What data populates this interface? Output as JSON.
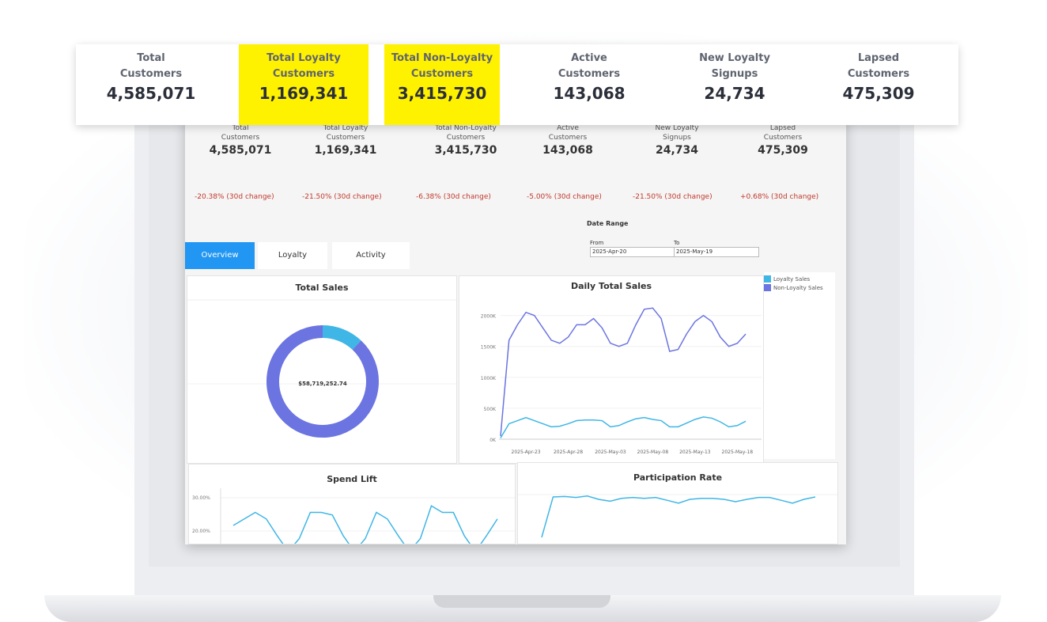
{
  "banner": {
    "kpis": [
      {
        "label": "Total Customers",
        "value": "4,585,071",
        "highlight": false
      },
      {
        "label": "Total Loyalty Customers",
        "value": "1,169,341",
        "highlight": true
      },
      {
        "label": "Total Non-Loyalty Customers",
        "value": "3,415,730",
        "highlight": true
      },
      {
        "label": "Active Customers",
        "value": "143,068",
        "highlight": false
      },
      {
        "label": "New Loyalty Signups",
        "value": "24,734",
        "highlight": false
      },
      {
        "label": "Lapsed Customers",
        "value": "475,309",
        "highlight": false
      }
    ],
    "highlight_color": "#fff200"
  },
  "dashboard": {
    "kpis": [
      {
        "label": "Total Customers",
        "value": "4,585,071",
        "change": "-20.38% (30d change)"
      },
      {
        "label": "Total Loyalty Customers",
        "value": "1,169,341",
        "change": "-21.50% (30d change)"
      },
      {
        "label": "Total Non-Loyalty Customers",
        "value": "3,415,730",
        "change": "-6.38% (30d change)"
      },
      {
        "label": "Active Customers",
        "value": "143,068",
        "change": "-5.00% (30d change)"
      },
      {
        "label": "New Loyalty Signups",
        "value": "24,734",
        "change": "-21.50% (30d change)"
      },
      {
        "label": "Lapsed Customers",
        "value": "475,309",
        "change": "+0.68% (30d change)"
      }
    ],
    "date_range": {
      "title": "Date Range",
      "from_label": "From",
      "from_value": "2025-Apr-20",
      "to_label": "To",
      "to_value": "2025-May-19"
    },
    "tabs": [
      {
        "label": "Overview",
        "active": true
      },
      {
        "label": "Loyalty",
        "active": false
      },
      {
        "label": "Activity",
        "active": false
      }
    ],
    "accent_color": "#2196f3"
  },
  "chart_data": [
    {
      "type": "pie",
      "title": "Total Sales",
      "center_label": "$58,719,252.74",
      "labels": [
        "Loyalty Sales",
        "Non-Loyalty Sales"
      ],
      "values": [
        12,
        88
      ],
      "colors": [
        "#3fb6e6",
        "#6b74e0"
      ]
    },
    {
      "type": "line",
      "title": "Daily Total Sales",
      "x": [
        "2025-Apr-20",
        "2025-Apr-21",
        "2025-Apr-22",
        "2025-Apr-23",
        "2025-Apr-24",
        "2025-Apr-25",
        "2025-Apr-26",
        "2025-Apr-27",
        "2025-Apr-28",
        "2025-Apr-29",
        "2025-Apr-30",
        "2025-May-01",
        "2025-May-02",
        "2025-May-03",
        "2025-May-04",
        "2025-May-05",
        "2025-May-06",
        "2025-May-07",
        "2025-May-08",
        "2025-May-09",
        "2025-May-10",
        "2025-May-11",
        "2025-May-12",
        "2025-May-13",
        "2025-May-14",
        "2025-May-15",
        "2025-May-16",
        "2025-May-17",
        "2025-May-18",
        "2025-May-19"
      ],
      "x_ticks": [
        "2025-Apr-23",
        "2025-Apr-28",
        "2025-May-03",
        "2025-May-08",
        "2025-May-13",
        "2025-May-18"
      ],
      "y_ticks": [
        "0K",
        "500K",
        "1000K",
        "1500K",
        "2000K"
      ],
      "ylim": [
        0,
        2200000
      ],
      "legend": [
        "Loyalty Sales",
        "Non-Loyalty Sales"
      ],
      "legend_position": "right",
      "series": [
        {
          "name": "Non-Loyalty Sales",
          "color": "#6b74e0",
          "values": [
            50000,
            1600000,
            1850000,
            2050000,
            2000000,
            1800000,
            1600000,
            1550000,
            1650000,
            1850000,
            1850000,
            1950000,
            1800000,
            1550000,
            1500000,
            1550000,
            1850000,
            2100000,
            2120000,
            1950000,
            1420000,
            1450000,
            1700000,
            1900000,
            2000000,
            1900000,
            1650000,
            1500000,
            1550000,
            1700000
          ]
        },
        {
          "name": "Loyalty Sales",
          "color": "#3fb6e6",
          "values": [
            20000,
            250000,
            300000,
            350000,
            300000,
            250000,
            200000,
            210000,
            250000,
            300000,
            310000,
            310000,
            300000,
            200000,
            220000,
            280000,
            330000,
            350000,
            320000,
            300000,
            200000,
            200000,
            260000,
            320000,
            360000,
            340000,
            280000,
            200000,
            220000,
            290000
          ]
        }
      ]
    },
    {
      "type": "line",
      "title": "Spend Lift",
      "y_ticks": [
        "30.00%",
        "20.00%"
      ],
      "series": [
        {
          "color": "#3fb6e6",
          "values": [
            20,
            25,
            30,
            25,
            12,
            0,
            10,
            30,
            30,
            28,
            12,
            0,
            10,
            30,
            25,
            12,
            0,
            10,
            35,
            30,
            30,
            12,
            0,
            12,
            25
          ]
        }
      ]
    },
    {
      "type": "line",
      "title": "Participation Rate",
      "series": [
        {
          "color": "#3fb6e6",
          "values": [
            0,
            85,
            86,
            84,
            87,
            80,
            76,
            82,
            84,
            82,
            84,
            78,
            72,
            80,
            82,
            82,
            80,
            75,
            80,
            84,
            84,
            78,
            72,
            80,
            85
          ]
        }
      ]
    }
  ]
}
